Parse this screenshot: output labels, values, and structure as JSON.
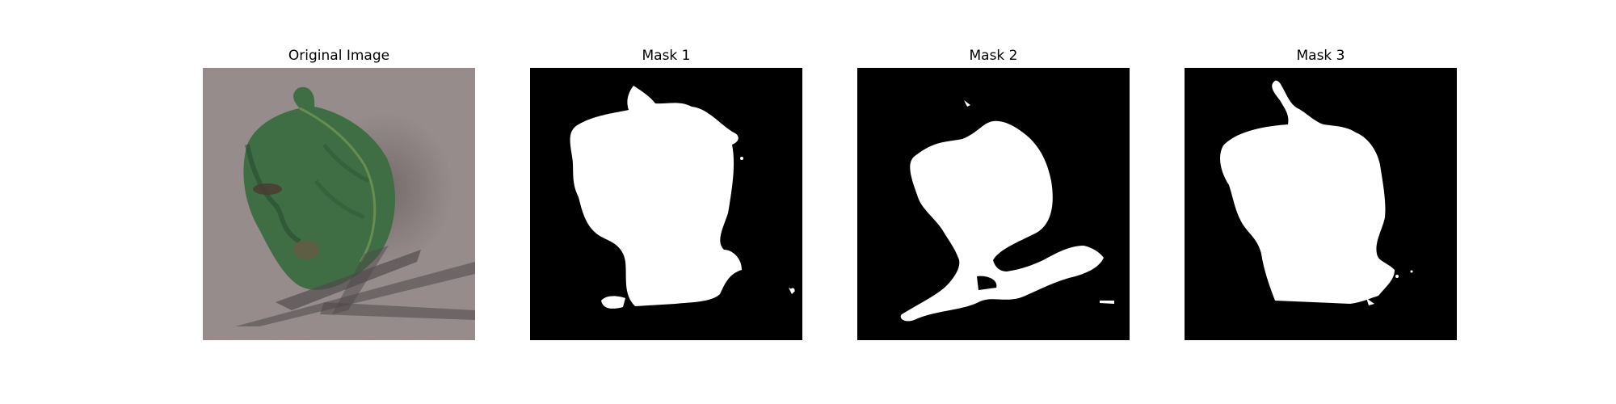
{
  "figure": {
    "panels": [
      {
        "title": "Original Image",
        "kind": "photo",
        "subject": "leaf-photo"
      },
      {
        "title": "Mask 1",
        "kind": "mask"
      },
      {
        "title": "Mask 2",
        "kind": "mask"
      },
      {
        "title": "Mask 3",
        "kind": "mask"
      }
    ],
    "colors": {
      "background": "#ffffff",
      "mask_background": "#000000",
      "mask_foreground": "#ffffff",
      "leaf_dark": "#2f5a36",
      "leaf_mid": "#3f6e45",
      "surface": "#8f8585"
    }
  }
}
